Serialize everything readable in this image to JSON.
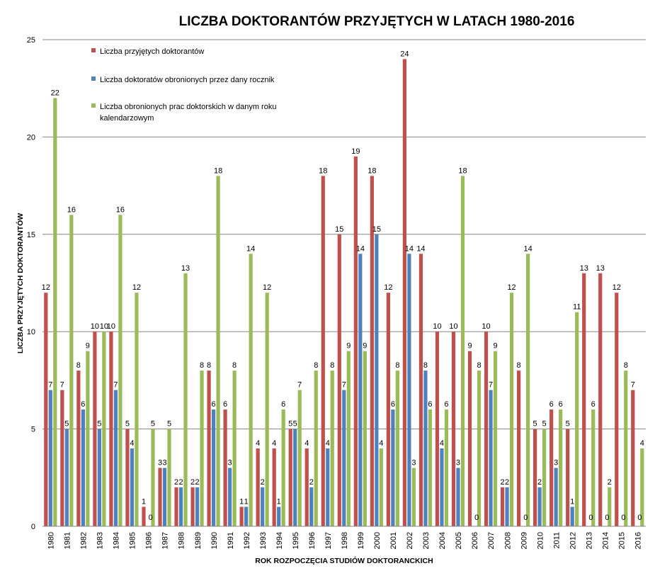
{
  "chart_data": {
    "type": "bar",
    "title": "LICZBA DOKTORANTÓW PRZYJĘTYCH W LATACH 1980-2016",
    "xlabel": "ROK ROZPOCZĘCIA STUDIÓW  DOKTORANCKICH",
    "ylabel": "LICZBA PRZYJĘTYCH  DOKTORANTÓW",
    "ylim": [
      0,
      25
    ],
    "yticks": [
      "0",
      "5",
      "10",
      "15",
      "20",
      "25"
    ],
    "grid": true,
    "legend_position": "top-left",
    "categories": [
      "1980",
      "1981",
      "1982",
      "1983",
      "1984",
      "1985",
      "1986",
      "1987",
      "1988",
      "1989",
      "1990",
      "1991",
      "1992",
      "1993",
      "1994",
      "1995",
      "1996",
      "1997",
      "1998",
      "1999",
      "2000",
      "2001",
      "2002",
      "2003",
      "2004",
      "2005",
      "2006",
      "2007",
      "2008",
      "2009",
      "2010",
      "2011",
      "2012",
      "2013",
      "2014",
      "2015",
      "2016"
    ],
    "series": [
      {
        "name": "Liczba przyjętych doktorantów",
        "color": "#c0504d",
        "values": [
          12,
          7,
          8,
          10,
          10,
          5,
          1,
          3,
          2,
          2,
          8,
          6,
          1,
          4,
          4,
          5,
          4,
          18,
          15,
          19,
          18,
          12,
          24,
          14,
          10,
          10,
          9,
          10,
          2,
          8,
          5,
          6,
          5,
          13,
          13,
          12,
          7
        ]
      },
      {
        "name": "Liczba doktoratów obronionych przez dany rocznik",
        "color": "#4f81bd",
        "values": [
          7,
          5,
          6,
          5,
          7,
          4,
          0,
          3,
          2,
          2,
          6,
          3,
          1,
          2,
          1,
          5,
          2,
          4,
          7,
          14,
          15,
          6,
          14,
          8,
          4,
          3,
          0,
          7,
          2,
          0,
          2,
          3,
          1,
          0,
          0,
          0,
          0
        ]
      },
      {
        "name": "Liczba obronionych prac doktorskich w danym roku kalendarzowym",
        "name_lines": [
          "Liczba obronionych prac doktorskich w danym roku",
          "kalendarzowym"
        ],
        "color": "#9bbb59",
        "values": [
          22,
          16,
          9,
          10,
          16,
          12,
          5,
          5,
          13,
          8,
          18,
          8,
          14,
          12,
          6,
          7,
          8,
          8,
          9,
          9,
          4,
          8,
          3,
          6,
          6,
          18,
          8,
          9,
          12,
          14,
          5,
          6,
          11,
          6,
          2,
          8,
          4
        ]
      }
    ],
    "data_labels": [
      [
        "12",
        "7",
        "8",
        "10",
        "10",
        "5",
        "1",
        "3",
        "2",
        "2",
        "8",
        "6",
        "1",
        "4",
        "4",
        "5",
        "4",
        "18",
        "15",
        "19",
        "18",
        "12",
        "24",
        "14",
        "10",
        "10",
        "9",
        "10",
        "2",
        "8",
        "5",
        "6",
        "5",
        "13",
        "13",
        "12",
        "7"
      ],
      [
        "7",
        "5",
        "6",
        "5",
        "7",
        "4",
        "",
        "3",
        "2",
        "2",
        "6",
        "3",
        "1",
        "2",
        "1",
        "5",
        "2",
        "4",
        "7",
        "14",
        "15",
        "6",
        "14",
        "8",
        "4",
        "3",
        "",
        "7",
        "2",
        "",
        "2",
        "3",
        "1",
        "",
        "",
        "",
        ""
      ],
      [
        "22",
        "16",
        "9",
        "10",
        "16",
        "12",
        "5",
        "5",
        "13",
        "8",
        "18",
        "8",
        "14",
        "12",
        "6",
        "7",
        "8",
        "8",
        "9",
        "9",
        "4",
        "8",
        "3",
        "6",
        "6",
        "18",
        "8",
        "9",
        "12",
        "14",
        "5",
        "6",
        "11",
        "6",
        "2",
        "8",
        "4"
      ]
    ],
    "zero_labels": [
      {
        "category": "1986",
        "text": "0"
      },
      {
        "category": "2006",
        "text": "0"
      },
      {
        "category": "2009",
        "text": "0"
      },
      {
        "category": "2013",
        "text": "0"
      },
      {
        "category": "2014",
        "text": "0"
      },
      {
        "category": "2015",
        "text": "0"
      },
      {
        "category": "2016",
        "text": "0"
      }
    ]
  }
}
